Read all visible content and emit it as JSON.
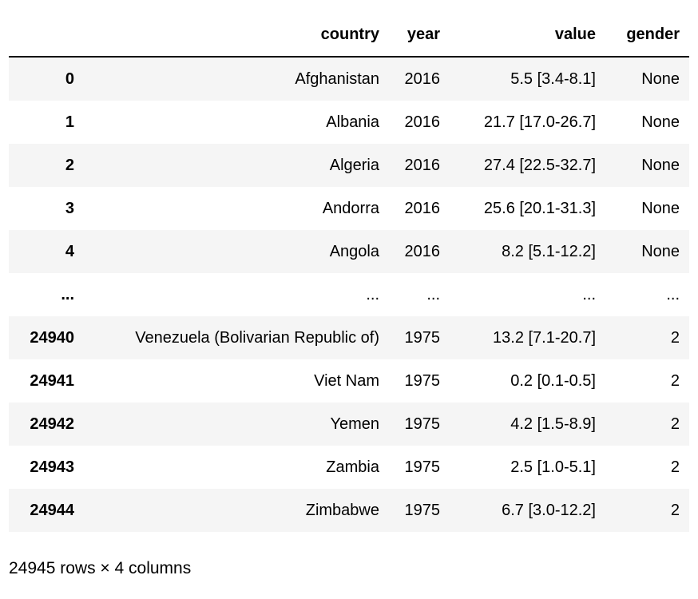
{
  "colors": {
    "background": "#ffffff",
    "text": "#000000",
    "row_stripe": "#f5f5f5",
    "header_border": "#000000"
  },
  "table": {
    "index_header": "",
    "columns": [
      "country",
      "year",
      "value",
      "gender"
    ],
    "rows": [
      {
        "index": "0",
        "country": "Afghanistan",
        "year": "2016",
        "value": "5.5 [3.4-8.1]",
        "gender": "None"
      },
      {
        "index": "1",
        "country": "Albania",
        "year": "2016",
        "value": "21.7 [17.0-26.7]",
        "gender": "None"
      },
      {
        "index": "2",
        "country": "Algeria",
        "year": "2016",
        "value": "27.4 [22.5-32.7]",
        "gender": "None"
      },
      {
        "index": "3",
        "country": "Andorra",
        "year": "2016",
        "value": "25.6 [20.1-31.3]",
        "gender": "None"
      },
      {
        "index": "4",
        "country": "Angola",
        "year": "2016",
        "value": "8.2 [5.1-12.2]",
        "gender": "None"
      },
      {
        "index": "...",
        "country": "...",
        "year": "...",
        "value": "...",
        "gender": "..."
      },
      {
        "index": "24940",
        "country": "Venezuela (Bolivarian Republic of)",
        "year": "1975",
        "value": "13.2 [7.1-20.7]",
        "gender": "2"
      },
      {
        "index": "24941",
        "country": "Viet Nam",
        "year": "1975",
        "value": "0.2 [0.1-0.5]",
        "gender": "2"
      },
      {
        "index": "24942",
        "country": "Yemen",
        "year": "1975",
        "value": "4.2 [1.5-8.9]",
        "gender": "2"
      },
      {
        "index": "24943",
        "country": "Zambia",
        "year": "1975",
        "value": "2.5 [1.0-5.1]",
        "gender": "2"
      },
      {
        "index": "24944",
        "country": "Zimbabwe",
        "year": "1975",
        "value": "6.7 [3.0-12.2]",
        "gender": "2"
      }
    ]
  },
  "footer": {
    "summary": "24945 rows × 4 columns"
  }
}
